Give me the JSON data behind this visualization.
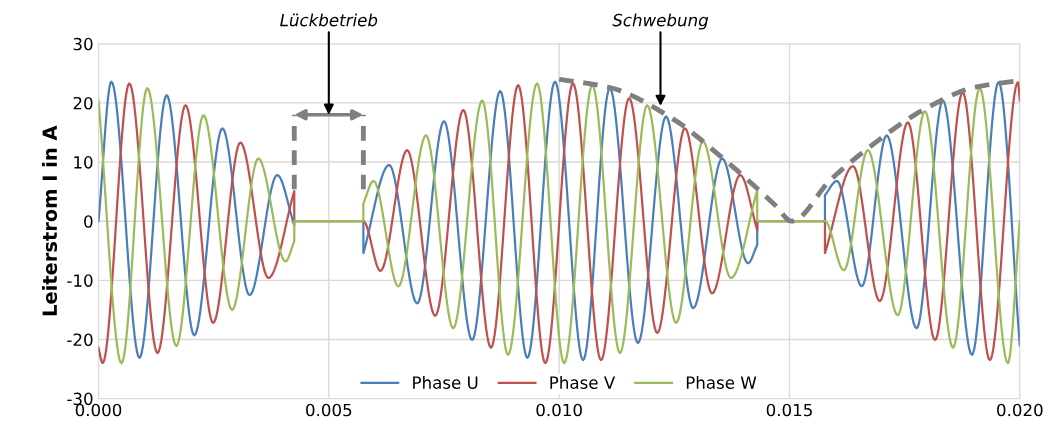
{
  "chart_data": {
    "type": "line",
    "ylabel": "Leiterstrom I in A",
    "xlim": [
      0,
      0.02
    ],
    "xticks": [
      {
        "value": 0,
        "label": "0.000"
      },
      {
        "value": 0.005,
        "label": "0.005"
      },
      {
        "value": 0.01,
        "label": "0.010"
      },
      {
        "value": 0.015,
        "label": "0.015"
      },
      {
        "value": 0.02,
        "label": "0.020"
      }
    ],
    "ylim": [
      -30,
      30
    ],
    "yticks": [
      -30,
      -20,
      -10,
      0,
      10,
      20,
      30
    ],
    "grid": true,
    "legend": "bottom",
    "series": [
      {
        "name": "Phase U",
        "color": "#4a7ebb",
        "x": [
          0,
          0.00028,
          0.00089,
          0.00148,
          0.00208,
          0.00269,
          0.00328,
          0.00388,
          0.00425,
          0.00425,
          0.00575,
          0.00575,
          0.00631,
          0.00692,
          0.0075,
          0.00811,
          0.00872,
          0.00931,
          0.00991,
          0.01052,
          0.0111,
          0.01171,
          0.01232,
          0.01291,
          0.01354,
          0.0141,
          0.0143,
          0.0143,
          0.01577,
          0.01577,
          0.01603,
          0.01657,
          0.01711,
          0.01776,
          0.01833,
          0.01896,
          0.01954,
          0.02
        ],
        "values": [
          0,
          23.6,
          -23.1,
          21.3,
          -19.3,
          15.7,
          -12.5,
          7.8,
          -0.7,
          0,
          0,
          -5.4,
          9.5,
          -13.9,
          16.9,
          -20.1,
          22,
          -23.1,
          23.6,
          -23.5,
          22.5,
          -20.6,
          17.7,
          -14.7,
          10.6,
          -7.1,
          -4,
          0,
          0,
          4.4,
          6.8,
          -11,
          14.5,
          -18.1,
          20.4,
          -22.6,
          23.5,
          -21
        ]
      },
      {
        "name": "Phase V",
        "color": "#c0504d",
        "x": [
          0,
          9e-05,
          0.00067,
          0.00128,
          0.00189,
          0.00249,
          0.00308,
          0.00369,
          0.00425,
          0.00425,
          0.00575,
          0.00612,
          0.0067,
          0.00731,
          0.00792,
          0.00852,
          0.00911,
          0.0097,
          0.0103,
          0.01091,
          0.01152,
          0.01213,
          0.01273,
          0.01332,
          0.01393,
          0.0143,
          0.0143,
          0.01577,
          0.01577,
          0.01638,
          0.01696,
          0.01757,
          0.01816,
          0.01876,
          0.01935,
          0.01996,
          0.02
        ],
        "values": [
          -21.4,
          -24,
          23.3,
          -22.3,
          19.6,
          -17.2,
          13.3,
          -9.6,
          5.1,
          0,
          0,
          -8.4,
          12,
          -16,
          18.8,
          -21.4,
          23,
          -24,
          23.3,
          -23.5,
          20.8,
          -18.9,
          15.7,
          -12.2,
          7.8,
          -1.5,
          0,
          0,
          -5.4,
          9.3,
          -13.5,
          16.7,
          -20.1,
          21.8,
          -23.5,
          23.5,
          20.4
        ]
      },
      {
        "name": "Phase W",
        "color": "#9bbb59",
        "x": [
          0,
          0.0005,
          0.00106,
          0.00169,
          0.00228,
          0.0029,
          0.00347,
          0.00406,
          0.00425,
          0.00425,
          0.00575,
          0.00575,
          0.00597,
          0.00651,
          0.00711,
          0.0077,
          0.00833,
          0.00889,
          0.00952,
          0.01011,
          0.01072,
          0.01132,
          0.01191,
          0.01254,
          0.01312,
          0.01373,
          0.0143,
          0.0143,
          0.01577,
          0.01618,
          0.0167,
          0.01735,
          0.01794,
          0.01855,
          0.01913,
          0.01974,
          0.02
        ],
        "values": [
          20.4,
          -24,
          22.5,
          -21.1,
          17.9,
          -15,
          10.6,
          -6.8,
          -3.4,
          0,
          0,
          3,
          6.8,
          -11,
          14.5,
          -18.1,
          20.4,
          -22.6,
          23.3,
          -24,
          23,
          -22.3,
          19.6,
          -17.2,
          13.5,
          -9.6,
          5.2,
          0,
          0,
          -8.3,
          12,
          -15.9,
          18.6,
          -21.4,
          22.5,
          -24,
          0
        ]
      },
      {
        "color": "#7f7f7f",
        "line_style": "dashed",
        "x": [
          0.01,
          0.0111,
          0.01245,
          0.0135,
          0.01469,
          0.01505,
          0.01588,
          0.0167,
          0.0179,
          0.019,
          0.02
        ],
        "values": [
          24,
          22.6,
          17.4,
          11,
          2.7,
          0,
          6.9,
          12.3,
          18.8,
          22.6,
          23.8
        ]
      }
    ],
    "annotations": [
      "Lückbetrieb",
      {
        "text": "Schwebung",
        "x": 0.0122,
        "y": 19.5
      }
    ]
  }
}
